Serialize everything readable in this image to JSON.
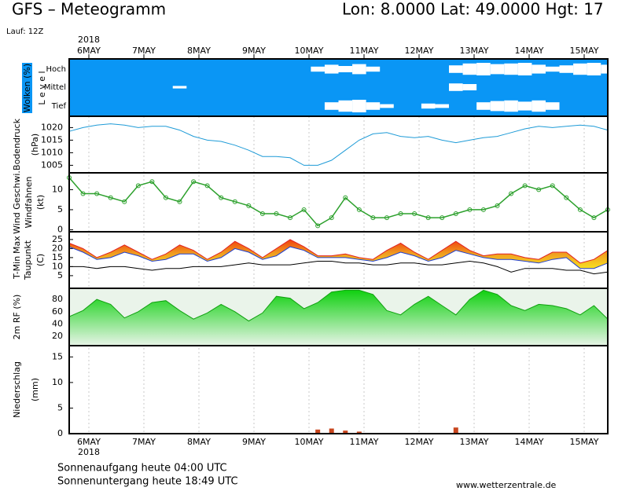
{
  "header": {
    "title": "GFS – Meteogramm",
    "location": "Lon: 8.0000  Lat: 49.0000  Hgt: 17",
    "run": "Lauf: 12Z"
  },
  "time_axis": {
    "year": "2018",
    "labels": [
      "6MAY",
      "7MAY",
      "8MAY",
      "9MAY",
      "10MAY",
      "11MAY",
      "12MAY",
      "13MAY",
      "14MAY",
      "15MAY"
    ]
  },
  "chart_data": [
    {
      "type": "clouds",
      "ylabel": "Wolken (%)",
      "level_label": "L e v e l",
      "background": "#0a96f5",
      "series": [
        {
          "name": "Hoch",
          "color": "#ffffff",
          "values": [
            0,
            0,
            0,
            0,
            0,
            0,
            0,
            0,
            0,
            0,
            0,
            0,
            0,
            0,
            0,
            0,
            0,
            0,
            40,
            70,
            50,
            80,
            40,
            0,
            0,
            0,
            0,
            0,
            60,
            90,
            100,
            80,
            90,
            100,
            70,
            40,
            60,
            90,
            100,
            70
          ]
        },
        {
          "name": "Mittel",
          "color": "#ffffff",
          "values": [
            0,
            0,
            0,
            0,
            0,
            0,
            0,
            0,
            20,
            0,
            0,
            0,
            0,
            0,
            0,
            0,
            0,
            0,
            0,
            0,
            0,
            0,
            0,
            0,
            0,
            0,
            0,
            0,
            60,
            50,
            0,
            0,
            0,
            0,
            0,
            0,
            0,
            0,
            0,
            0
          ]
        },
        {
          "name": "Tief",
          "color": "#ffffff",
          "values": [
            0,
            0,
            0,
            0,
            0,
            0,
            0,
            0,
            0,
            0,
            0,
            0,
            0,
            0,
            0,
            0,
            0,
            0,
            0,
            60,
            90,
            100,
            60,
            30,
            0,
            0,
            40,
            30,
            0,
            0,
            60,
            80,
            90,
            70,
            90,
            60,
            0,
            0,
            0,
            0
          ]
        }
      ]
    },
    {
      "type": "line",
      "ylabel": "Bodendruck",
      "yunit": "(hPa)",
      "color": "#1e9bd7",
      "values": [
        1018.5,
        1020,
        1021,
        1021.5,
        1021,
        1020,
        1020.5,
        1020.5,
        1019,
        1016.5,
        1015,
        1014.5,
        1013,
        1011,
        1008.5,
        1008.5,
        1008,
        1005,
        1005,
        1007,
        1011,
        1015,
        1017.5,
        1018,
        1016.5,
        1016,
        1016.5,
        1015,
        1014,
        1015,
        1016,
        1016.5,
        1018,
        1019.5,
        1020.5,
        1020,
        1020.5,
        1021,
        1020.5,
        1019
      ],
      "ylim": [
        1002,
        1024.5
      ],
      "yticks": [
        1005,
        1010,
        1015,
        1020
      ]
    },
    {
      "type": "line",
      "ylabel": "Wind Geschwi.",
      "ylabel2": "Windfahnen",
      "yunit": "(kt)",
      "color": "#2ca02c",
      "markers": true,
      "values": [
        13,
        9,
        9,
        8,
        7,
        11,
        12,
        8,
        7,
        12,
        11,
        8,
        7,
        6,
        4,
        4,
        3,
        5,
        1,
        3,
        8,
        5,
        3,
        3,
        4,
        4,
        3,
        3,
        4,
        5,
        5,
        6,
        9,
        11,
        10,
        11,
        8,
        5,
        3,
        5
      ],
      "ylim": [
        -0.5,
        14.2
      ],
      "yticks": [
        0,
        5,
        10
      ]
    },
    {
      "type": "band",
      "yunit": "(C)",
      "series": [
        {
          "name": "T-Min",
          "color": "#1f3fd0",
          "values": [
            21,
            18,
            14,
            15,
            18,
            16,
            13,
            14,
            17,
            17,
            13,
            15,
            20,
            18,
            14,
            16,
            21,
            19,
            15,
            15,
            15,
            14,
            13,
            15,
            18,
            16,
            13,
            15,
            19,
            17,
            15,
            14,
            14,
            13,
            12,
            14,
            15,
            9,
            9,
            12
          ]
        },
        {
          "name": "Max",
          "color": "#e02020",
          "values": [
            23,
            20,
            15,
            18,
            22,
            18,
            14,
            17,
            22,
            19,
            14,
            18,
            24,
            20,
            15,
            20,
            25,
            21,
            16,
            16,
            17,
            15,
            14,
            19,
            23,
            18,
            14,
            19,
            24,
            19,
            16,
            17,
            17,
            15,
            14,
            18,
            18,
            12,
            14,
            19
          ]
        },
        {
          "name": "Taupunkt",
          "color": "#000000",
          "values": [
            10,
            10,
            9,
            10,
            10,
            9,
            8,
            9,
            9,
            10,
            10,
            10,
            11,
            12,
            11,
            11,
            11,
            12,
            13,
            13,
            12,
            12,
            11,
            11,
            12,
            12,
            11,
            11,
            12,
            13,
            12,
            10,
            7,
            9,
            9,
            9,
            8,
            8,
            6,
            7
          ]
        }
      ],
      "ylim": [
        -2,
        29.3
      ],
      "yticks": [
        5,
        10,
        15,
        20,
        25
      ]
    },
    {
      "type": "area",
      "ylabel": "2m RF (%)",
      "color": "#18c818",
      "values": [
        52,
        62,
        80,
        72,
        50,
        60,
        75,
        78,
        62,
        48,
        58,
        72,
        60,
        45,
        58,
        85,
        82,
        65,
        75,
        92,
        95,
        95,
        88,
        62,
        55,
        72,
        85,
        70,
        55,
        80,
        95,
        88,
        70,
        62,
        72,
        70,
        65,
        55,
        70,
        48
      ],
      "ylim": [
        5,
        98
      ],
      "yticks": [
        20,
        40,
        60,
        80
      ]
    },
    {
      "type": "bar",
      "ylabel": "Niederschlag",
      "yunit": "(mm)",
      "color": "#c8461e",
      "values": [
        0,
        0,
        0,
        0,
        0,
        0,
        0,
        0,
        0,
        0,
        0,
        0,
        0,
        0,
        0,
        0,
        0,
        0,
        0.8,
        1.0,
        0.6,
        0.4,
        0,
        0,
        0,
        0,
        0,
        0,
        1.2,
        0,
        0,
        0,
        0,
        0,
        0,
        0,
        0,
        0,
        0,
        0
      ],
      "ylim": [
        0,
        17.2
      ],
      "yticks": [
        0,
        5,
        10,
        15
      ]
    }
  ],
  "footer": {
    "sunrise": "Sonnenaufgang heute 04:00 UTC",
    "sunset": "Sonnenuntergang heute 18:49 UTC",
    "source": "www.wetterzentrale.de"
  }
}
